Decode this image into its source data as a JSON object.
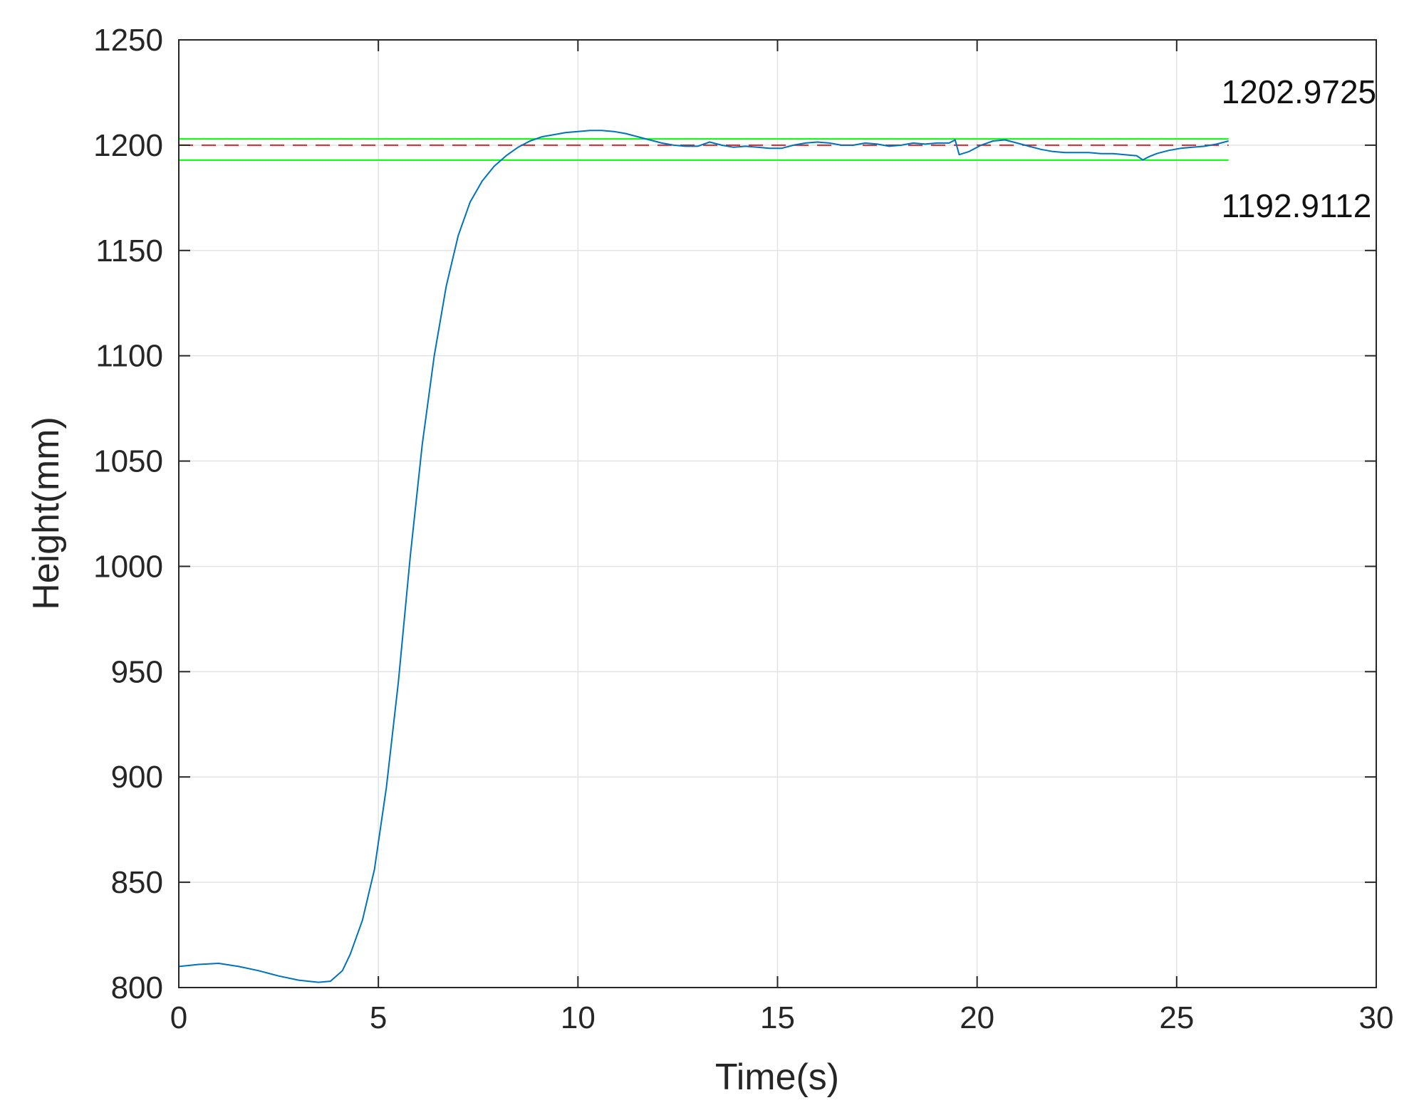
{
  "chart_data": {
    "type": "line",
    "xlabel": "Time(s)",
    "ylabel": "Height(mm)",
    "xlim": [
      0,
      30
    ],
    "ylim": [
      800,
      1250
    ],
    "xticks": [
      0,
      5,
      10,
      15,
      20,
      25,
      30
    ],
    "yticks": [
      800,
      850,
      900,
      950,
      1000,
      1050,
      1100,
      1150,
      1200,
      1250
    ],
    "xtick_labels": [
      "0",
      "5",
      "10",
      "15",
      "20",
      "25",
      "30"
    ],
    "ytick_labels": [
      "800",
      "850",
      "900",
      "950",
      "1000",
      "1050",
      "1100",
      "1150",
      "1200",
      "1250"
    ],
    "grid": true,
    "series": [
      {
        "color": "#0072bd",
        "style": "solid",
        "x": [
          0,
          0.5,
          1,
          1.5,
          2,
          2.5,
          3,
          3.5,
          3.8,
          4.1,
          4.3,
          4.6,
          4.9,
          5.2,
          5.5,
          5.8,
          6.1,
          6.4,
          6.7,
          7.0,
          7.3,
          7.6,
          7.9,
          8.2,
          8.5,
          8.8,
          9.1,
          9.4,
          9.7,
          10.0,
          10.3,
          10.6,
          10.9,
          11.2,
          11.5,
          11.8,
          12.1,
          12.4,
          12.7,
          13.0,
          13.3,
          13.6,
          13.9,
          14.2,
          14.5,
          14.8,
          15.1,
          15.4,
          15.7,
          16.0,
          16.3,
          16.6,
          16.9,
          17.2,
          17.5,
          17.8,
          18.1,
          18.4,
          18.7,
          19.0,
          19.3,
          19.45,
          19.55,
          19.8,
          20.1,
          20.4,
          20.7,
          21.0,
          21.3,
          21.6,
          21.9,
          22.2,
          22.5,
          22.8,
          23.1,
          23.4,
          23.7,
          24.0,
          24.15,
          24.3,
          24.5,
          24.8,
          25.1,
          25.4,
          25.7,
          26.0,
          26.3
        ],
        "y": [
          810,
          811,
          811.5,
          810,
          808,
          805.5,
          803.5,
          802.5,
          803,
          808,
          816,
          832,
          856,
          895,
          945,
          1005,
          1058,
          1100,
          1133,
          1157,
          1173,
          1183,
          1190,
          1195,
          1199,
          1202,
          1204,
          1205,
          1206,
          1206.5,
          1207,
          1207,
          1206.5,
          1205.5,
          1204,
          1202.5,
          1201,
          1200,
          1199.5,
          1199.5,
          1201.5,
          1200,
          1199,
          1199.5,
          1199,
          1198.5,
          1198.5,
          1200,
          1201,
          1201.5,
          1201,
          1200,
          1200,
          1201,
          1200.5,
          1199.5,
          1200,
          1201,
          1200.5,
          1201,
          1201,
          1202.5,
          1195.5,
          1197,
          1200,
          1202,
          1202.5,
          1201,
          1199.5,
          1198,
          1197,
          1196.5,
          1196.5,
          1196.5,
          1196,
          1196,
          1195.5,
          1195,
          1193,
          1194.5,
          1196,
          1197.5,
          1198.5,
          1199,
          1199.5,
          1200.5,
          1202
        ]
      },
      {
        "color": "#00ff00",
        "style": "solid",
        "x": [
          0,
          26.3
        ],
        "y": [
          1202.9725,
          1202.9725
        ]
      },
      {
        "color": "#00ff00",
        "style": "solid",
        "x": [
          0,
          26.3
        ],
        "y": [
          1192.9112,
          1192.9112
        ]
      },
      {
        "color": "#d62728",
        "style": "dashed",
        "x": [
          0,
          26.3
        ],
        "y": [
          1200,
          1200
        ]
      }
    ],
    "annotations": [
      {
        "text": "1202.9725",
        "x": 26.3,
        "y": 1202.9725
      },
      {
        "text": "1192.9112",
        "x": 26.3,
        "y": 1192.9112
      }
    ]
  }
}
